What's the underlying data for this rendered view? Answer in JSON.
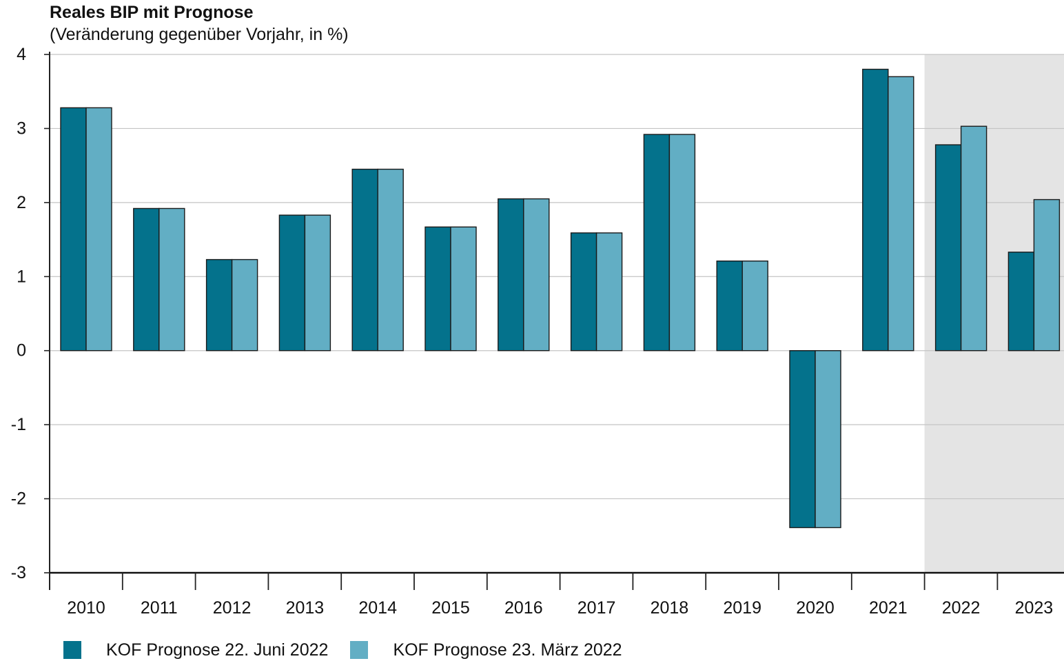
{
  "chart_data": {
    "type": "bar",
    "title": "Reales BIP mit Prognose",
    "subtitle": "(Veränderung gegenüber Vorjahr, in %)",
    "categories": [
      "2010",
      "2011",
      "2012",
      "2013",
      "2014",
      "2015",
      "2016",
      "2017",
      "2018",
      "2019",
      "2020",
      "2021",
      "2022",
      "2023"
    ],
    "series": [
      {
        "name": "KOF Prognose 22. Juni 2022",
        "color": "#04728c",
        "values": [
          3.28,
          1.92,
          1.23,
          1.83,
          2.45,
          1.67,
          2.05,
          1.59,
          2.92,
          1.21,
          -2.39,
          3.8,
          2.78,
          1.33
        ]
      },
      {
        "name": "KOF Prognose 23. März 2022",
        "color": "#62aec4",
        "values": [
          3.28,
          1.92,
          1.23,
          1.83,
          2.45,
          1.67,
          2.05,
          1.59,
          2.92,
          1.21,
          -2.39,
          3.7,
          3.03,
          2.04
        ]
      }
    ],
    "ylim": [
      -3,
      4
    ],
    "yticks": [
      4,
      3,
      2,
      1,
      0,
      -1,
      -2,
      -3
    ],
    "forecast_categories": [
      "2022",
      "2023"
    ],
    "forecast_shade_color": "#e4e4e4",
    "grid": true,
    "legend_position": "bottom-left"
  }
}
